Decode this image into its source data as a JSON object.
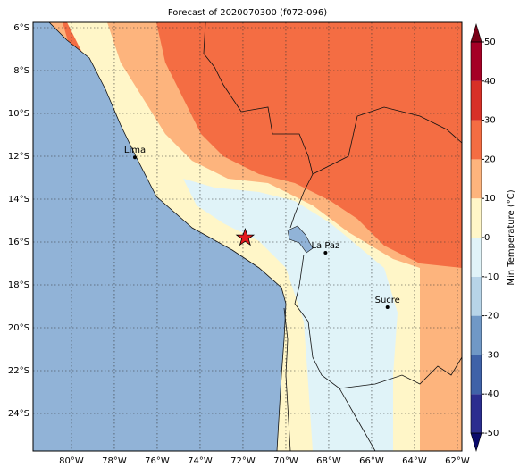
{
  "map": {
    "title": "Forecast of 2020070300 (f072-096)",
    "xlim": [
      -81.79,
      -61.79
    ],
    "ylim": [
      -25.75,
      -5.75
    ],
    "xticks": [
      {
        "value": -80,
        "label": "80°W"
      },
      {
        "value": -78,
        "label": "78°W"
      },
      {
        "value": -76,
        "label": "76°W"
      },
      {
        "value": -74,
        "label": "74°W"
      },
      {
        "value": -72,
        "label": "72°W"
      },
      {
        "value": -70,
        "label": "70°W"
      },
      {
        "value": -68,
        "label": "68°W"
      },
      {
        "value": -66,
        "label": "66°W"
      },
      {
        "value": -64,
        "label": "64°W"
      },
      {
        "value": -62,
        "label": "62°W"
      }
    ],
    "yticks": [
      {
        "value": -6,
        "label": "6°S"
      },
      {
        "value": -8,
        "label": "8°S"
      },
      {
        "value": -10,
        "label": "10°S"
      },
      {
        "value": -12,
        "label": "12°S"
      },
      {
        "value": -14,
        "label": "14°S"
      },
      {
        "value": -16,
        "label": "16°S"
      },
      {
        "value": -18,
        "label": "18°S"
      },
      {
        "value": -20,
        "label": "20°S"
      },
      {
        "value": -22,
        "label": "22°S"
      },
      {
        "value": -24,
        "label": "24°S"
      }
    ],
    "cities": [
      {
        "name": "Lima",
        "lon": -77.04,
        "lat": -12.05
      },
      {
        "name": "La Paz",
        "lon": -68.15,
        "lat": -16.5
      },
      {
        "name": "Sucre",
        "lon": -65.26,
        "lat": -19.04
      }
    ],
    "star": {
      "lon": -71.9,
      "lat": -15.8
    },
    "colorbar": {
      "label": "Min Temperature (°C)",
      "levels": [
        -50,
        -40,
        -30,
        -20,
        -10,
        0,
        10,
        20,
        30,
        40,
        50
      ],
      "colors": [
        "#2b2d8f",
        "#3f62a8",
        "#7098c6",
        "#b7d4e8",
        "#e0f3f8",
        "#fff6c8",
        "#fdb47d",
        "#f46d43",
        "#d73027",
        "#a50026"
      ],
      "under_color": "#0b0b6b",
      "over_color": "#7a0018"
    }
  }
}
